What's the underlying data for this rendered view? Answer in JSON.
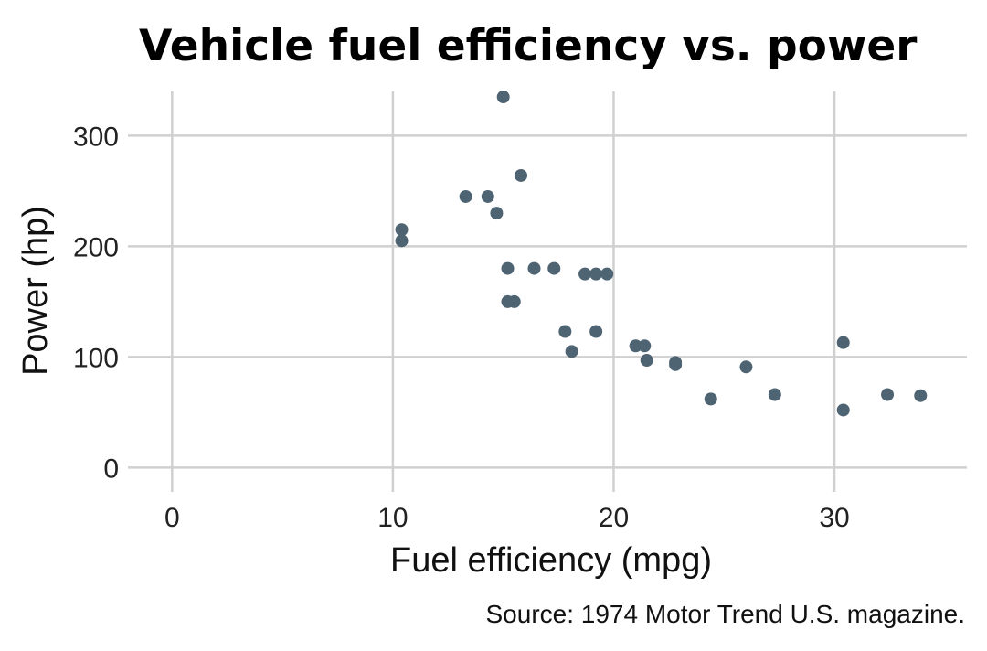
{
  "chart_data": {
    "type": "scatter",
    "title": "Vehicle fuel efficiency vs. power",
    "xlabel": "Fuel efficiency (mpg)",
    "ylabel": "Power (hp)",
    "caption": "Source: 1974 Motor Trend U.S. magazine.",
    "xlim": [
      -2,
      36
    ],
    "ylim": [
      -22,
      340
    ],
    "x_ticks": [
      0,
      10,
      20,
      30
    ],
    "y_ticks": [
      0,
      100,
      200,
      300
    ],
    "x_tick_labels": [
      "0",
      "10",
      "20",
      "30"
    ],
    "y_tick_labels": [
      "0",
      "100",
      "200",
      "300"
    ],
    "grid": true,
    "point_color": "#4f6473",
    "series": [
      {
        "points": [
          {
            "x": 10.4,
            "y": 205
          },
          {
            "x": 10.4,
            "y": 215
          },
          {
            "x": 13.3,
            "y": 245
          },
          {
            "x": 14.3,
            "y": 245
          },
          {
            "x": 14.7,
            "y": 230
          },
          {
            "x": 15.0,
            "y": 335
          },
          {
            "x": 15.2,
            "y": 180
          },
          {
            "x": 15.2,
            "y": 150
          },
          {
            "x": 15.5,
            "y": 150
          },
          {
            "x": 15.8,
            "y": 264
          },
          {
            "x": 16.4,
            "y": 180
          },
          {
            "x": 17.3,
            "y": 180
          },
          {
            "x": 17.8,
            "y": 123
          },
          {
            "x": 18.1,
            "y": 105
          },
          {
            "x": 18.7,
            "y": 175
          },
          {
            "x": 19.2,
            "y": 175
          },
          {
            "x": 19.2,
            "y": 123
          },
          {
            "x": 19.7,
            "y": 175
          },
          {
            "x": 21.0,
            "y": 110
          },
          {
            "x": 21.4,
            "y": 110
          },
          {
            "x": 21.5,
            "y": 97
          },
          {
            "x": 22.8,
            "y": 95
          },
          {
            "x": 22.8,
            "y": 93
          },
          {
            "x": 24.4,
            "y": 62
          },
          {
            "x": 26.0,
            "y": 91
          },
          {
            "x": 27.3,
            "y": 66
          },
          {
            "x": 30.4,
            "y": 52
          },
          {
            "x": 30.4,
            "y": 113
          },
          {
            "x": 32.4,
            "y": 66
          },
          {
            "x": 33.9,
            "y": 65
          }
        ]
      }
    ]
  }
}
